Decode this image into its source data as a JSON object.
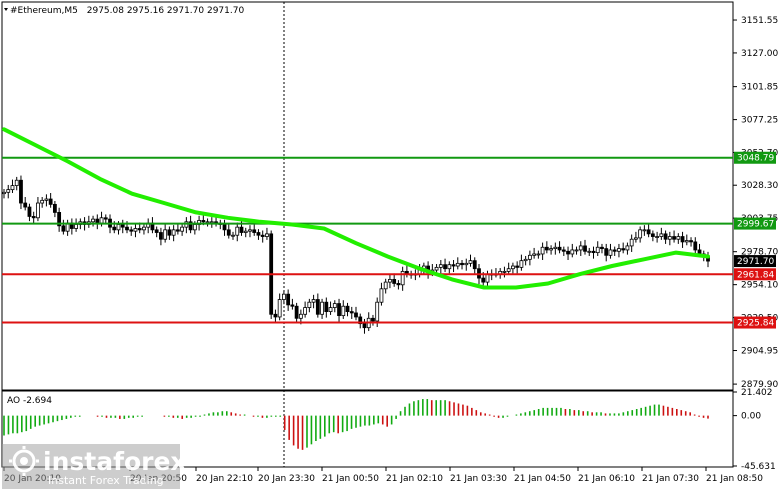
{
  "header": {
    "symbol": "#Ethereum,M5",
    "ohlc": "2975.08 2975.16 2971.70 2971.70"
  },
  "colors": {
    "background": "#ffffff",
    "candle": "#000000",
    "ma": "#22ee00",
    "resistance": "#119911",
    "support": "#dd1111",
    "ao_up": "#11aa11",
    "ao_down": "#cc1111",
    "price_tag": "#000000"
  },
  "watermark": {
    "brand": "instaforex",
    "tagline": "Instant Forex Trading"
  },
  "chart_data": [
    {
      "type": "candlestick",
      "panel": "price",
      "ylim": [
        2875.5,
        3165
      ],
      "yticks": [
        "3151.55",
        "3127.00",
        "3101.85",
        "3077.25",
        "3052.70",
        "3028.30",
        "3003.75",
        "2978.70",
        "2954.10",
        "2929.50",
        "2904.95",
        "2879.90"
      ],
      "xticks": [
        "20 Jan 20:10",
        "20 Jan 20:50",
        "20 Jan 22:10",
        "20 Jan 23:30",
        "21 Jan 00:50",
        "21 Jan 02:10",
        "21 Jan 03:30",
        "21 Jan 04:50",
        "21 Jan 06:10",
        "21 Jan 07:30",
        "21 Jan 08:50"
      ],
      "close": [
        3023,
        3025,
        3028,
        3032,
        3015,
        3012,
        3005,
        3004,
        3015,
        3017,
        3018,
        3014,
        3008,
        2998,
        2994,
        3000,
        2996,
        2999,
        3001,
        2999,
        3001,
        3003,
        3000,
        3004,
        3003,
        2997,
        2995,
        2999,
        2997,
        2995,
        2994,
        2996,
        2995,
        2997,
        3000,
        2995,
        2993,
        2988,
        2995,
        2991,
        2995,
        2994,
        2997,
        3001,
        2995,
        2999,
        3002,
        3001,
        3001,
        3001,
        3000,
        2999,
        2995,
        2991,
        2991,
        2997,
        2993,
        2994,
        2995,
        2993,
        2991,
        2990,
        2992,
        2932,
        2930,
        2943,
        2947,
        2939,
        2938,
        2929,
        2932,
        2937,
        2941,
        2943,
        2932,
        2941,
        2934,
        2937,
        2940,
        2931,
        2938,
        2934,
        2933,
        2930,
        2925,
        2922,
        2929,
        2927,
        2941,
        2951,
        2956,
        2958,
        2955,
        2954,
        2964,
        2962,
        2962,
        2962,
        2965,
        2968,
        2963,
        2965,
        2967,
        2969,
        2966,
        2969,
        2968,
        2970,
        2969,
        2970,
        2972,
        2966,
        2959,
        2956,
        2962,
        2962,
        2962,
        2964,
        2964,
        2966,
        2968,
        2967,
        2972,
        2973,
        2976,
        2977,
        2977,
        2982,
        2980,
        2981,
        2982,
        2980,
        2979,
        2977,
        2980,
        2980,
        2983,
        2979,
        2979,
        2978,
        2982,
        2981,
        2976,
        2980,
        2979,
        2981,
        2980,
        2983,
        2988,
        2989,
        2995,
        2995,
        2992,
        2990,
        2990,
        2992,
        2988,
        2990,
        2988,
        2990,
        2986,
        2987,
        2986,
        2980,
        2977,
        2975.08,
        2971.7
      ],
      "series": [
        {
          "kind": "moving-average",
          "values": [
            3070,
            3058,
            3046,
            3033,
            3022,
            3015,
            3008,
            3004,
            3001,
            2999,
            2996,
            2985,
            2975,
            2966,
            2958,
            2952,
            2952,
            2955,
            2962,
            2968,
            2973,
            2978,
            2975.08
          ]
        }
      ],
      "levels": [
        {
          "value": "3048.79",
          "kind": "resistance"
        },
        {
          "value": "2999.67",
          "kind": "resistance"
        },
        {
          "value": "2961.84",
          "kind": "support"
        },
        {
          "value": "2925.84",
          "kind": "support"
        }
      ],
      "last_price": "2971.70"
    },
    {
      "type": "bar",
      "panel": "oscillator",
      "title": "AO -2.694",
      "ylim": [
        -45.631,
        21.402
      ],
      "yticks": [
        "21.402",
        "0.00",
        "-45.631"
      ],
      "values": [
        -18,
        -17,
        -16,
        -16,
        -15,
        -14,
        -12,
        -10,
        -9,
        -8,
        -7,
        -6,
        -5,
        -4,
        -3,
        -2,
        -1,
        -1,
        0,
        0,
        0,
        -1,
        -1,
        -2,
        -2,
        -2,
        -3,
        -3,
        -2,
        -2,
        -1,
        -1,
        0,
        0,
        0,
        0,
        -1,
        -1,
        -2,
        -2,
        -3,
        -2,
        -2,
        -1,
        -1,
        1,
        2,
        3,
        3,
        4,
        4,
        3,
        2,
        1,
        1,
        0,
        -1,
        -1,
        -2,
        -2,
        -1,
        -1,
        -1,
        -13,
        -22,
        -27,
        -30,
        -31,
        -29,
        -26,
        -23,
        -21,
        -19,
        -16,
        -15,
        -16,
        -15,
        -14,
        -12,
        -11,
        -10,
        -9,
        -9,
        -8,
        -7,
        -8,
        -10,
        -8,
        -3,
        4,
        8,
        11,
        13,
        14,
        15,
        15,
        14,
        14,
        14,
        14,
        13,
        12,
        11,
        10,
        9,
        7,
        5,
        3,
        2,
        1,
        -1,
        -2,
        -2,
        -1,
        0,
        1,
        2,
        3,
        4,
        5,
        6,
        7,
        7,
        7,
        7,
        7,
        6,
        6,
        5,
        5,
        4,
        4,
        3,
        3,
        3,
        2,
        2,
        2,
        2,
        3,
        4,
        5,
        6,
        7,
        8,
        9,
        10,
        10,
        9,
        8,
        7,
        6,
        5,
        4,
        3,
        1,
        -1,
        -2,
        -2.694
      ]
    }
  ]
}
